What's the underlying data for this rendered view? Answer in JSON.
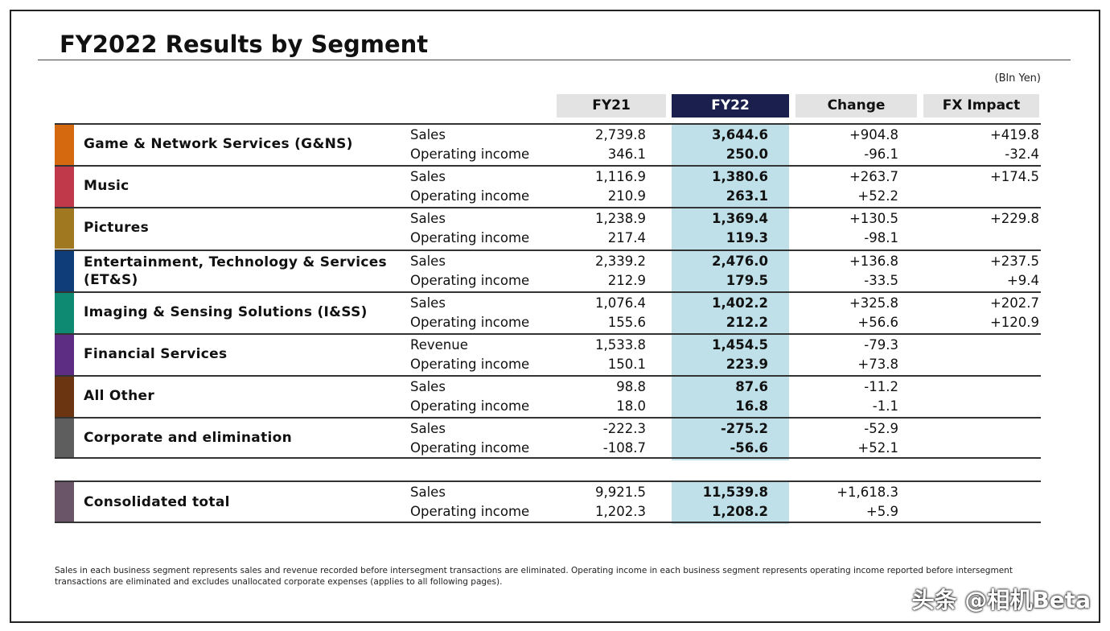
{
  "title": "FY2022 Results by Segment",
  "unit": "(Bln Yen)",
  "headers": [
    "FY21",
    "FY22",
    "Change",
    "FX Impact"
  ],
  "segments": [
    {
      "name": "Game & Network Services (G&NS)",
      "color": "#d4690f",
      "rows": [
        [
          "Sales",
          "2,739.8",
          "3,644.6",
          "+904.8",
          "+419.8"
        ],
        [
          "Operating income",
          "346.1",
          "250.0",
          "-96.1",
          "-32.4"
        ]
      ]
    },
    {
      "name": "Music",
      "color": "#c0394b",
      "rows": [
        [
          "Sales",
          "1,116.9",
          "1,380.6",
          "+263.7",
          "+174.5"
        ],
        [
          "Operating income",
          "210.9",
          "263.1",
          "+52.2",
          ""
        ]
      ]
    },
    {
      "name": "Pictures",
      "color": "#a07820",
      "rows": [
        [
          "Sales",
          "1,238.9",
          "1,369.4",
          "+130.5",
          "+229.8"
        ],
        [
          "Operating income",
          "217.4",
          "119.3",
          "-98.1",
          ""
        ]
      ]
    },
    {
      "name": "Entertainment, Technology & Services (ET&S)",
      "color": "#0e3d7a",
      "rows": [
        [
          "Sales",
          "2,339.2",
          "2,476.0",
          "+136.8",
          "+237.5"
        ],
        [
          "Operating income",
          "212.9",
          "179.5",
          "-33.5",
          "+9.4"
        ]
      ]
    },
    {
      "name": "Imaging & Sensing Solutions (I&SS)",
      "color": "#0e8a72",
      "rows": [
        [
          "Sales",
          "1,076.4",
          "1,402.2",
          "+325.8",
          "+202.7"
        ],
        [
          "Operating income",
          "155.6",
          "212.2",
          "+56.6",
          "+120.9"
        ]
      ]
    },
    {
      "name": "Financial Services",
      "color": "#5c2d82",
      "rows": [
        [
          "Revenue",
          "1,533.8",
          "1,454.5",
          "-79.3",
          ""
        ],
        [
          "Operating income",
          "150.1",
          "223.9",
          "+73.8",
          ""
        ]
      ]
    },
    {
      "name": "All Other",
      "color": "#6a3510",
      "rows": [
        [
          "Sales",
          "98.8",
          "87.6",
          "-11.2",
          ""
        ],
        [
          "Operating income",
          "18.0",
          "16.8",
          "-1.1",
          ""
        ]
      ]
    },
    {
      "name": "Corporate and elimination",
      "color": "#5e5e5e",
      "rows": [
        [
          "Sales",
          "-222.3",
          "-275.2",
          "-52.9",
          ""
        ],
        [
          "Operating income",
          "-108.7",
          "-56.6",
          "+52.1",
          ""
        ]
      ]
    }
  ],
  "total": {
    "name": "Consolidated total",
    "color": "#6a5468",
    "rows": [
      [
        "Sales",
        "9,921.5",
        "11,539.8",
        "+1,618.3",
        ""
      ],
      [
        "Operating income",
        "1,202.3",
        "1,208.2",
        "+5.9",
        ""
      ]
    ]
  },
  "footnote": "Sales in each business segment represents sales and revenue recorded before intersegment transactions are eliminated. Operating income in each business segment represents operating income reported before intersegment transactions are eliminated and excludes unallocated corporate expenses (applies to all following pages).",
  "watermark": "头条 @相机Beta"
}
